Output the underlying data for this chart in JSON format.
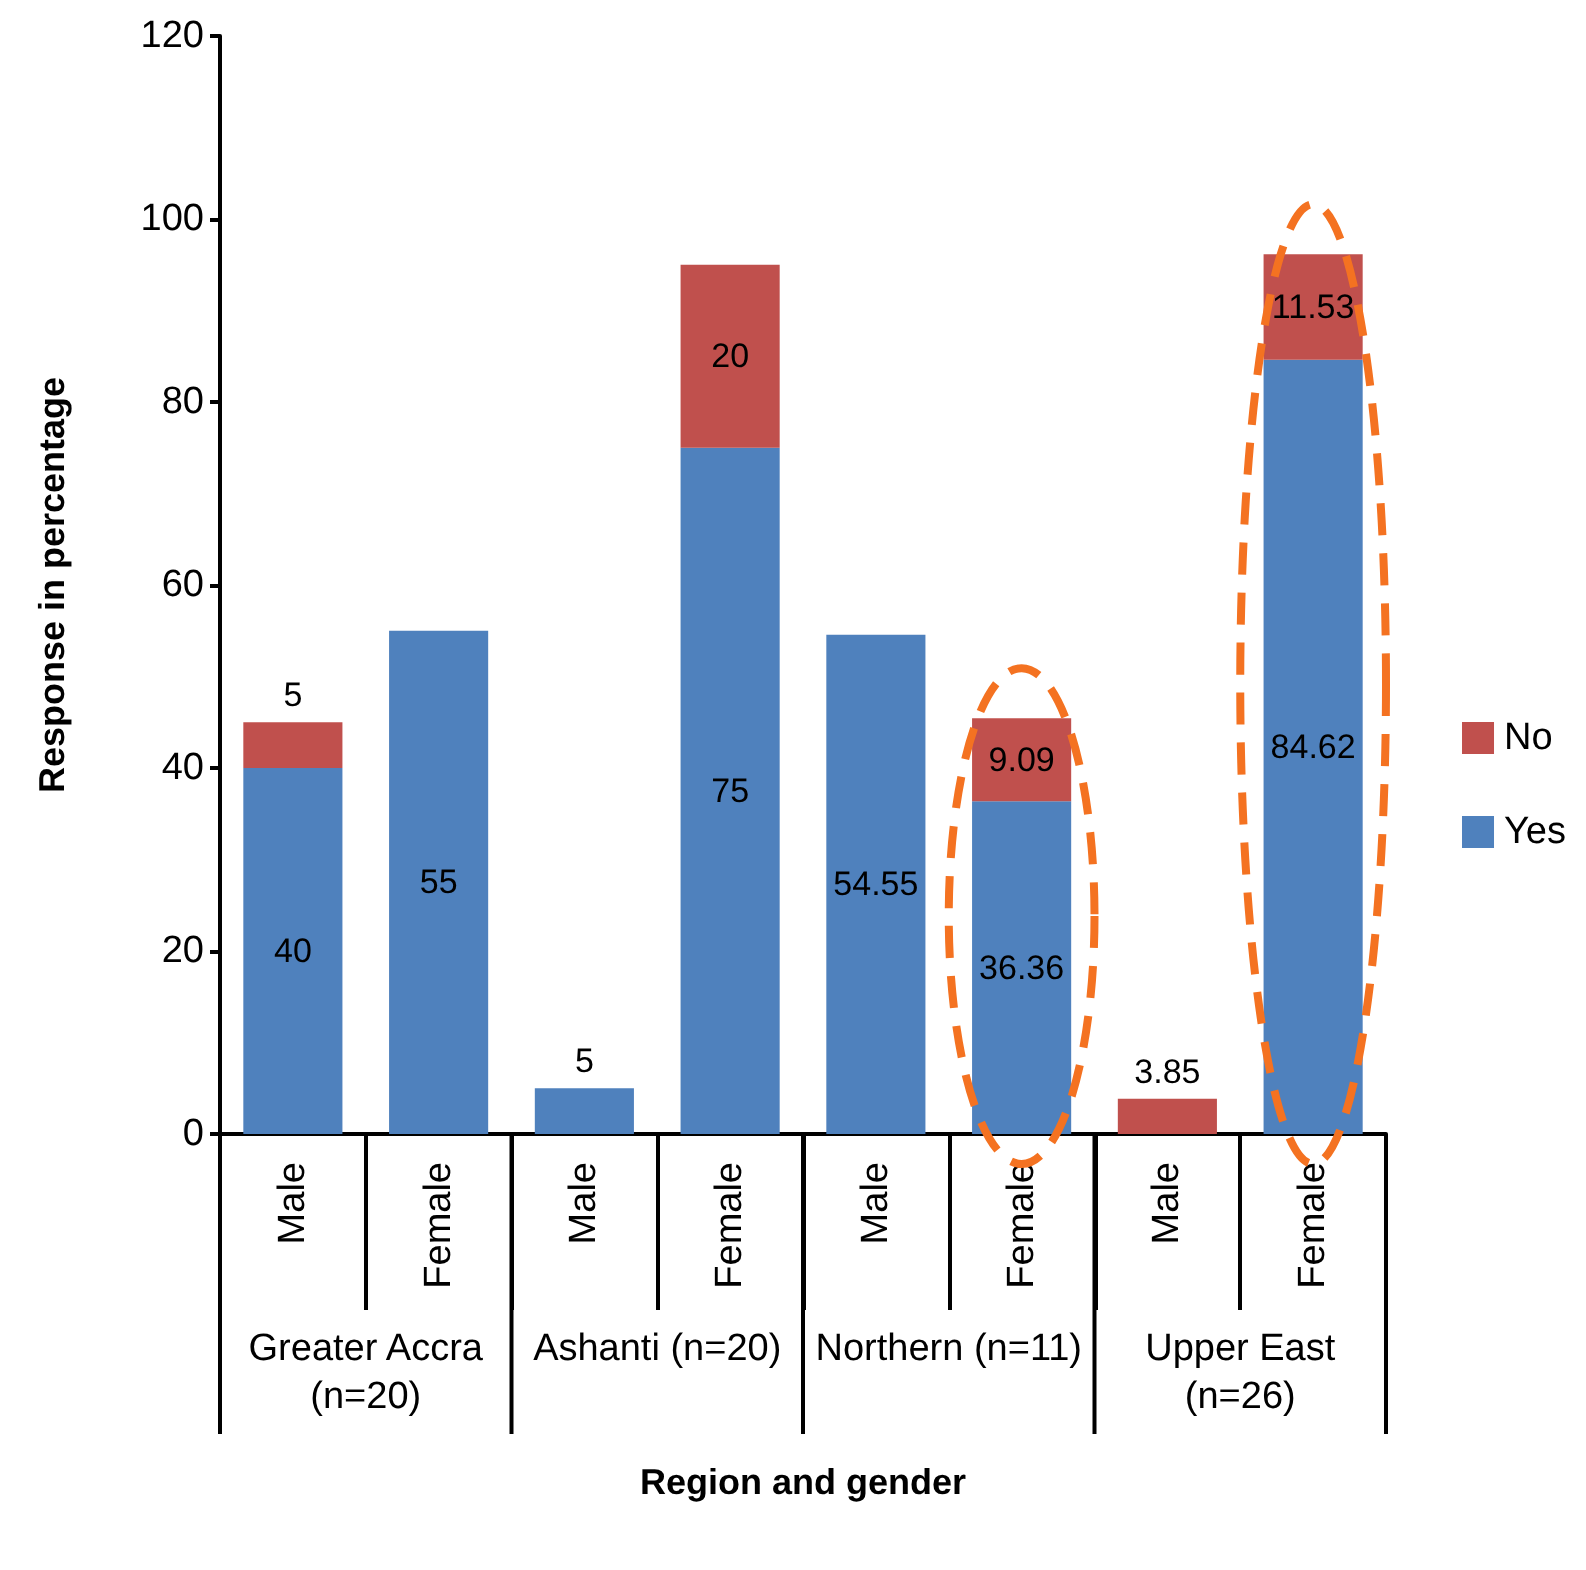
{
  "chart_data": {
    "type": "bar",
    "stacked": true,
    "xlabel": "Region and gender",
    "ylabel": "Response in percentage",
    "categories": [
      "Male",
      "Female",
      "Male",
      "Female",
      "Male",
      "Female",
      "Male",
      "Female"
    ],
    "annotations": [
      "Greater Accra (n=20)",
      "Ashanti (n=20)",
      "Northern (n=11)",
      "Upper East (n=26)"
    ],
    "series": [
      {
        "name": "Yes",
        "color": "#4f81bd",
        "values": [
          40,
          55,
          5,
          75,
          54.55,
          36.36,
          null,
          84.62
        ]
      },
      {
        "name": "No",
        "color": "#c0504d",
        "values": [
          5,
          null,
          null,
          20,
          null,
          9.09,
          3.85,
          11.53
        ]
      }
    ],
    "ylim": [
      0,
      120
    ],
    "yticks": [
      0,
      20,
      40,
      60,
      80,
      100,
      120
    ],
    "grid": false,
    "legend": "right",
    "data_labels": true
  }
}
